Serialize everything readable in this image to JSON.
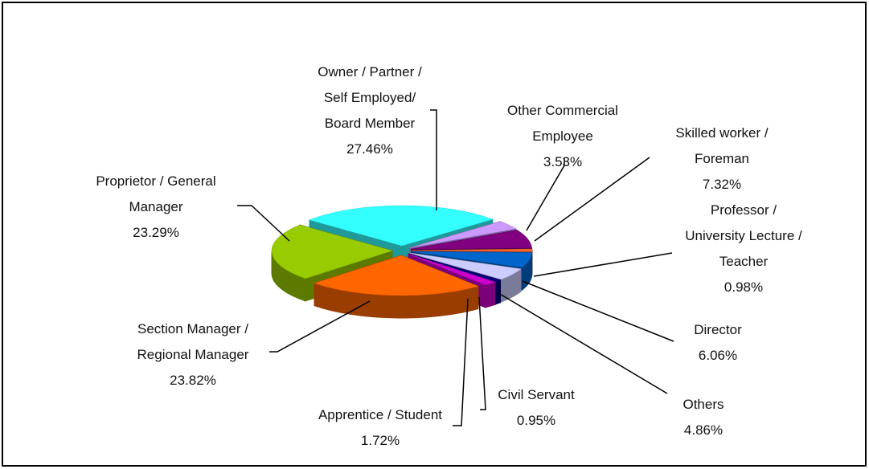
{
  "chart_data": {
    "type": "pie3d",
    "categories": [
      "Owner / Partner /\nSelf Employed/\nBoard Member",
      "Other Commercial\nEmployee",
      "Skilled worker /\nForeman",
      "Professor /\nUniversity Lecture /\nTeacher",
      "Director",
      "Others",
      "Civil Servant",
      "Apprentice / Student",
      "Section Manager /\nRegional Manager",
      "Proprietor / General\nManager"
    ],
    "values": [
      27.46,
      3.53,
      7.32,
      0.98,
      6.06,
      4.86,
      0.95,
      1.72,
      23.82,
      23.29
    ],
    "value_labels": [
      "27.46%",
      "3.53%",
      "7.32%",
      "0.98%",
      "6.06%",
      "4.86%",
      "0.95%",
      "1.72%",
      "23.82%",
      "23.29%"
    ],
    "colors": [
      "#33ffff",
      "#cc99ff",
      "#800080",
      "#ff6633",
      "#0066cc",
      "#ccccff",
      "#000080",
      "#cc00cc",
      "#ff6600",
      "#99cc00"
    ]
  }
}
